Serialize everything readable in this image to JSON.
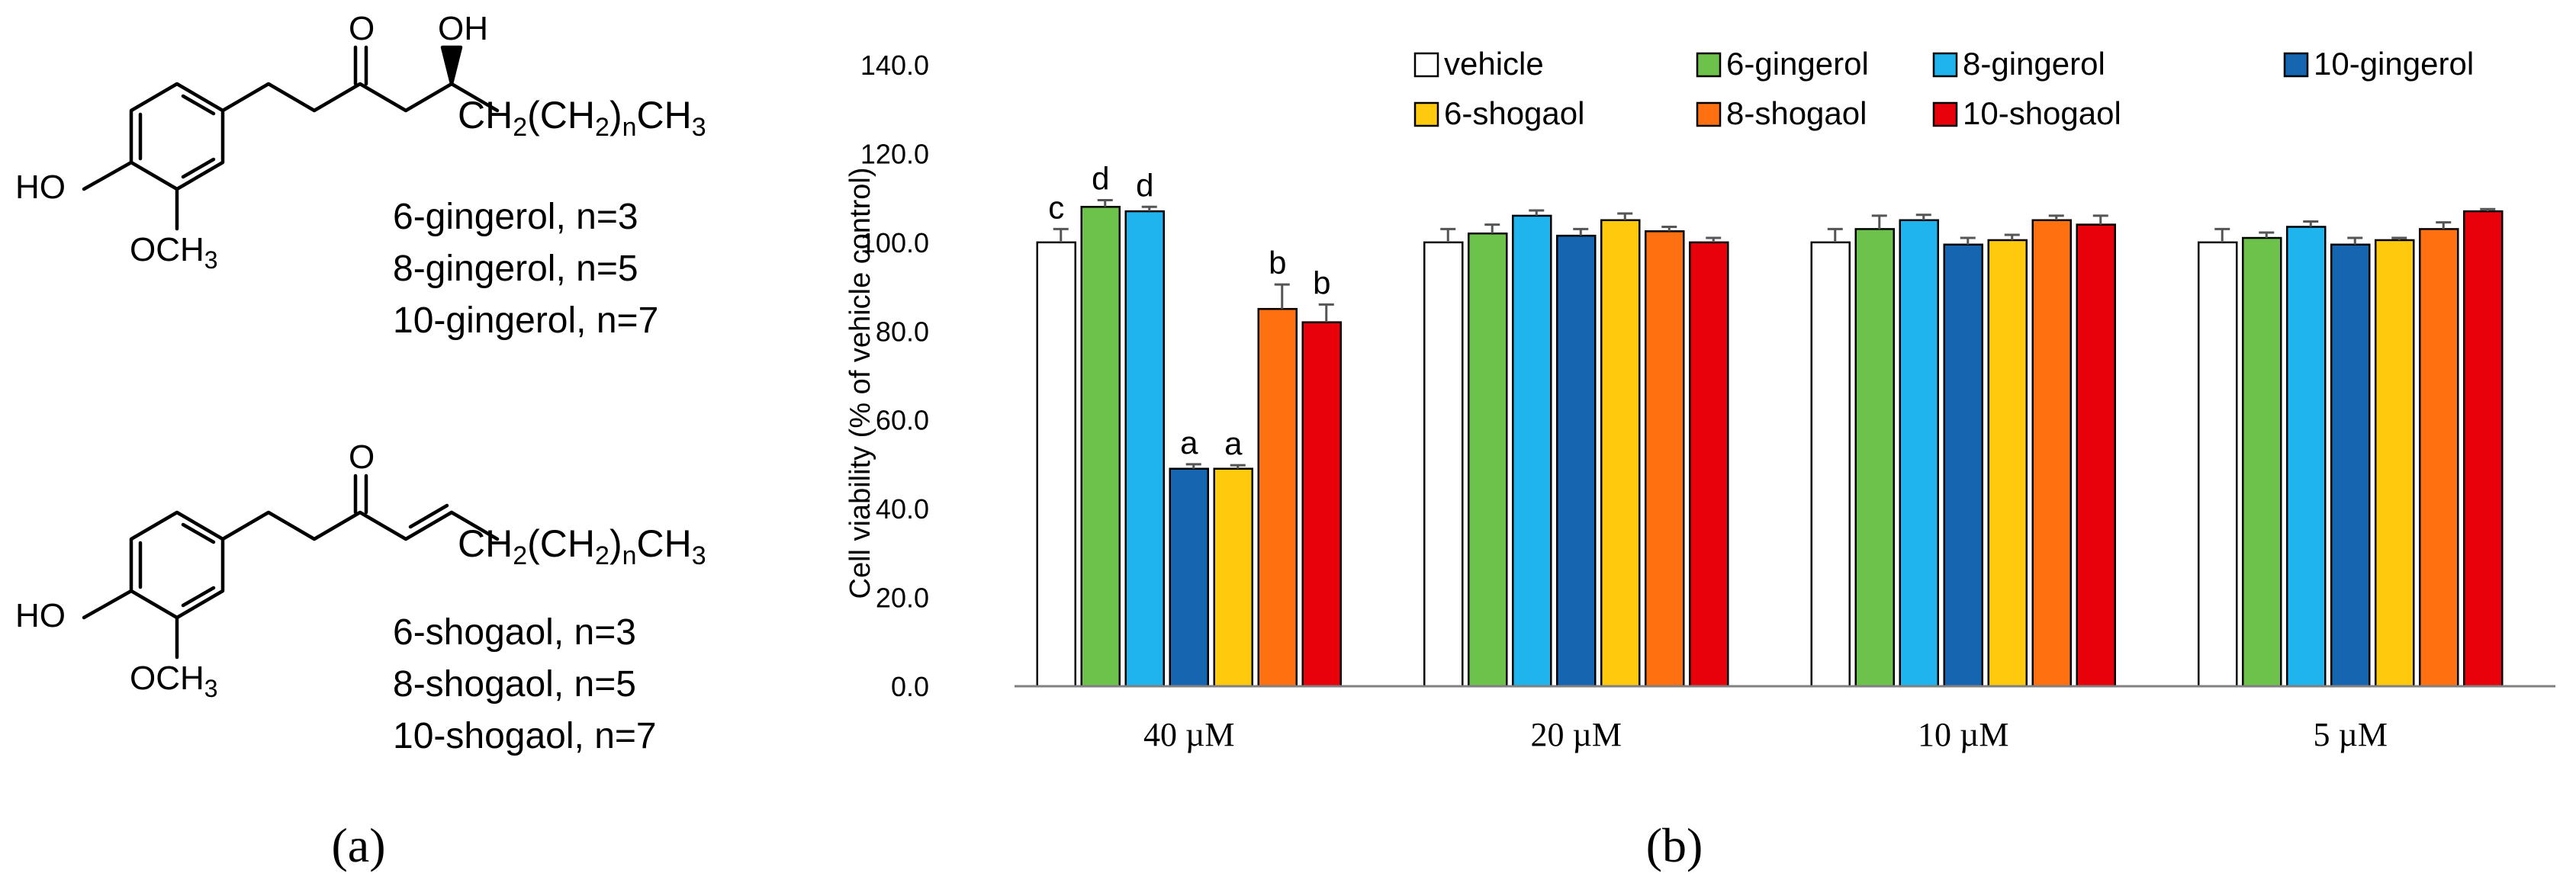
{
  "panel_a": {
    "label": "(a)",
    "gingerol": {
      "ketone_label": "O",
      "hydroxyl_label": "OH",
      "phenol_label": "HO",
      "methoxy_label": "OCH",
      "methoxy_sub": "3",
      "chain_label": {
        "p1": "CH",
        "s1": "2",
        "p2": "(CH",
        "s2": "2",
        "p3": ")",
        "s3": "n",
        "p4": "CH",
        "s4": "3"
      },
      "names": [
        "6-gingerol, n=3",
        "8-gingerol, n=5",
        "10-gingerol, n=7"
      ]
    },
    "shogaol": {
      "ketone_label": "O",
      "phenol_label": "HO",
      "methoxy_label": "OCH",
      "methoxy_sub": "3",
      "chain_label": {
        "p1": "CH",
        "s1": "2",
        "p2": "(CH",
        "s2": "2",
        "p3": ")",
        "s3": "n",
        "p4": "CH",
        "s4": "3"
      },
      "names": [
        "6-shogaol, n=3",
        "8-shogaol, n=5",
        "10-shogaol, n=7"
      ]
    }
  },
  "panel_b": {
    "label": "(b)"
  },
  "chart_data": {
    "type": "bar",
    "title": "",
    "xlabel": "",
    "ylabel": "Cell viability (% of vehicle control)",
    "ylim": [
      0,
      140
    ],
    "yticks": [
      "0.0",
      "20.0",
      "40.0",
      "60.0",
      "80.0",
      "100.0",
      "120.0",
      "140.0"
    ],
    "ytick_values": [
      0,
      20,
      40,
      60,
      80,
      100,
      120,
      140
    ],
    "grid": false,
    "legend_position": "top",
    "categories": [
      "40 µM",
      "20 µM",
      "10 µM",
      "5 µM"
    ],
    "series": [
      {
        "name": "vehicle",
        "color": "#ffffff",
        "values": [
          100.0,
          100.0,
          100.0,
          100.0
        ],
        "errors": [
          3.0,
          3.0,
          3.0,
          3.0
        ],
        "letters": [
          "c",
          "",
          "",
          ""
        ]
      },
      {
        "name": "6-gingerol",
        "color": "#6cc24a",
        "values": [
          108.0,
          102.0,
          103.0,
          101.0
        ],
        "errors": [
          1.5,
          2.0,
          3.0,
          1.2
        ],
        "letters": [
          "d",
          "",
          "",
          ""
        ]
      },
      {
        "name": "8-gingerol",
        "color": "#1fb4ee",
        "values": [
          107.0,
          106.0,
          105.0,
          103.5
        ],
        "errors": [
          1.0,
          1.2,
          1.2,
          1.2
        ],
        "letters": [
          "d",
          "",
          "",
          ""
        ]
      },
      {
        "name": "10-gingerol",
        "color": "#1565b0",
        "values": [
          49.0,
          101.5,
          99.5,
          99.5
        ],
        "errors": [
          1.0,
          1.5,
          1.5,
          1.5
        ],
        "letters": [
          "a",
          "",
          "",
          ""
        ]
      },
      {
        "name": "6-shogaol",
        "color": "#ffc90e",
        "values": [
          49.0,
          105.0,
          100.5,
          100.5
        ],
        "errors": [
          0.8,
          1.5,
          1.2,
          0.5
        ],
        "letters": [
          "a",
          "",
          "",
          ""
        ]
      },
      {
        "name": "8-shogaol",
        "color": "#ff7010",
        "values": [
          85.0,
          102.5,
          105.0,
          103.0
        ],
        "errors": [
          5.5,
          1.0,
          1.0,
          1.5
        ],
        "letters": [
          "b",
          "",
          "",
          ""
        ]
      },
      {
        "name": "10-shogaol",
        "color": "#e8000b",
        "values": [
          82.0,
          100.0,
          104.0,
          107.0
        ],
        "errors": [
          4.0,
          1.0,
          2.0,
          0.5
        ],
        "letters": [
          "b",
          "",
          "",
          ""
        ]
      }
    ],
    "legend_rows": [
      [
        "vehicle",
        "6-gingerol",
        "8-gingerol",
        "10-gingerol"
      ],
      [
        "6-shogaol",
        "8-shogaol",
        "10-shogaol"
      ]
    ]
  }
}
